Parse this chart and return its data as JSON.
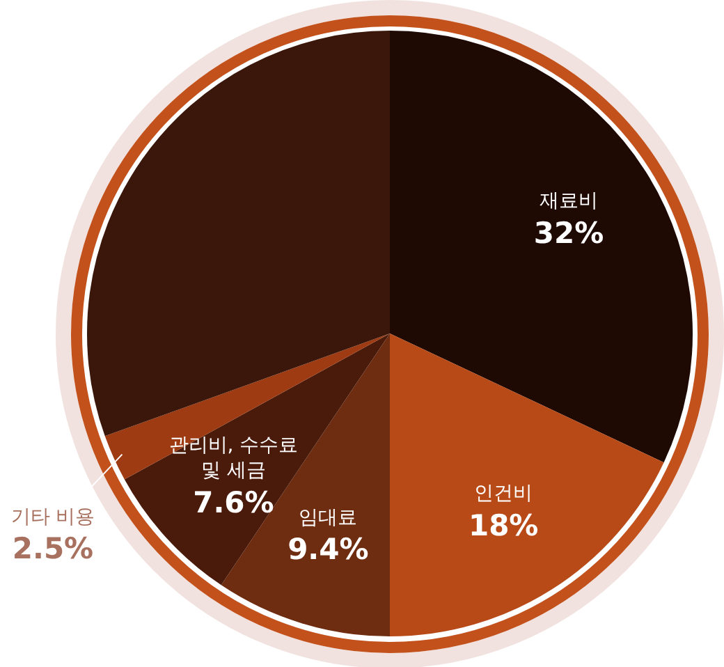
{
  "chart_data": {
    "type": "pie",
    "categories": [
      "재료비",
      "인건비",
      "임대료",
      "관리비, 수수료 및 세금",
      "기타 비용",
      null
    ],
    "values": [
      32,
      18,
      9.4,
      7.6,
      2.5,
      30.5
    ],
    "colors": [
      "#1e0a03",
      "#b84a18",
      "#6e2c10",
      "#4a1a0a",
      "#9e3b12",
      "#3a170a"
    ],
    "value_labels": [
      "32%",
      "18%",
      "9.4%",
      "7.6%",
      "2.5%",
      null
    ],
    "legend": false
  }
}
